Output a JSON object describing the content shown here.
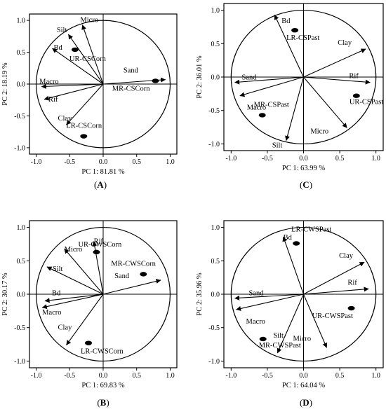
{
  "chart_data": [
    {
      "type": "scatter",
      "subtype": "pca-biplot",
      "caption": "A",
      "xlabel": "PC 1: 81.81 %",
      "ylabel": "PC 2: 18.19 %",
      "xlim": [
        -1.1,
        1.1
      ],
      "ylim": [
        -1.1,
        1.1
      ],
      "xticks": [
        "-1.0",
        "-0.5",
        "0.0",
        "0.5",
        "1.0"
      ],
      "yticks": [
        "1.0",
        "0.5",
        "0.0",
        "-0.5",
        "-1.0"
      ],
      "vectors": [
        {
          "label": "Micro",
          "x": -0.31,
          "y": 0.93
        },
        {
          "label": "Silt",
          "x": -0.52,
          "y": 0.78
        },
        {
          "label": "Bd",
          "x": -0.76,
          "y": 0.56
        },
        {
          "label": "Macro",
          "x": -0.92,
          "y": -0.04
        },
        {
          "label": "Rif",
          "x": -0.88,
          "y": -0.24
        },
        {
          "label": "Clay",
          "x": -0.55,
          "y": -0.64
        },
        {
          "label": "Sand",
          "x": 0.93,
          "y": 0.07
        }
      ],
      "points": [
        {
          "label": "UR-CSCorn",
          "x": -0.42,
          "y": 0.54
        },
        {
          "label": "MR-CSCorn",
          "x": 0.78,
          "y": 0.05
        },
        {
          "label": "LR-CSCorn",
          "x": -0.29,
          "y": -0.82
        }
      ]
    },
    {
      "type": "scatter",
      "subtype": "pca-biplot",
      "caption": "C",
      "xlabel": "PC 1: 63.99 %",
      "ylabel": "PC 2: 36.01 %",
      "xlim": [
        -1.1,
        1.1
      ],
      "ylim": [
        -1.1,
        1.1
      ],
      "xticks": [
        "-1.0",
        "-0.5",
        "0.0",
        "0.5",
        "1.0"
      ],
      "yticks": [
        "1.0",
        "0.5",
        "0.0",
        "-0.5",
        "-1.0"
      ],
      "vectors": [
        {
          "label": "Bd",
          "x": -0.4,
          "y": 0.93
        },
        {
          "label": "Clay",
          "x": 0.86,
          "y": 0.42
        },
        {
          "label": "Sand",
          "x": -0.95,
          "y": -0.08
        },
        {
          "label": "Macro",
          "x": -0.88,
          "y": -0.28
        },
        {
          "label": "Rif",
          "x": 0.92,
          "y": -0.08
        },
        {
          "label": "Silt",
          "x": -0.24,
          "y": -0.95
        },
        {
          "label": "Micro",
          "x": 0.6,
          "y": -0.76
        }
      ],
      "points": [
        {
          "label": "LR-CSPast",
          "x": -0.12,
          "y": 0.7
        },
        {
          "label": "MR-CSPast",
          "x": -0.57,
          "y": -0.57
        },
        {
          "label": "UR-CSPast",
          "x": 0.73,
          "y": -0.28
        }
      ]
    },
    {
      "type": "scatter",
      "subtype": "pca-biplot",
      "caption": "B",
      "xlabel": "PC 1: 69.83 %",
      "ylabel": "PC 2: 30.17 %",
      "xlim": [
        -1.1,
        1.1
      ],
      "ylim": [
        -1.1,
        1.1
      ],
      "xticks": [
        "-1.0",
        "-0.5",
        "0.0",
        "0.5",
        "1.0"
      ],
      "yticks": [
        "1.0",
        "0.5",
        "0.0",
        "-0.5",
        "-1.0"
      ],
      "vectors": [
        {
          "label": "Rif",
          "x": -0.14,
          "y": 0.79
        },
        {
          "label": "Micro",
          "x": -0.58,
          "y": 0.68
        },
        {
          "label": "Silt",
          "x": -0.84,
          "y": 0.41
        },
        {
          "label": "Bd",
          "x": -0.87,
          "y": -0.1
        },
        {
          "label": "Macro",
          "x": -0.91,
          "y": -0.2
        },
        {
          "label": "Clay",
          "x": -0.55,
          "y": -0.76
        },
        {
          "label": "Sand",
          "x": 0.86,
          "y": 0.21
        }
      ],
      "points": [
        {
          "label": "UR-CWSCorn",
          "x": -0.1,
          "y": 0.63
        },
        {
          "label": "MR-CWSCorn",
          "x": 0.6,
          "y": 0.3
        },
        {
          "label": "LR-CWSCorn",
          "x": -0.22,
          "y": -0.73
        }
      ]
    },
    {
      "type": "scatter",
      "subtype": "pca-biplot",
      "caption": "D",
      "xlabel": "PC 1: 64.04 %",
      "ylabel": "PC 2: 35.96 %",
      "xlim": [
        -1.1,
        1.1
      ],
      "ylim": [
        -1.1,
        1.1
      ],
      "xticks": [
        "-1.0",
        "-0.5",
        "0.0",
        "0.5",
        "1.0"
      ],
      "yticks": [
        "1.0",
        "0.5",
        "0.0",
        "-0.5",
        "-1.0"
      ],
      "vectors": [
        {
          "label": "Bd",
          "x": -0.28,
          "y": 0.86
        },
        {
          "label": "Clay",
          "x": 0.84,
          "y": 0.48
        },
        {
          "label": "Rif",
          "x": 0.9,
          "y": 0.08
        },
        {
          "label": "Sand",
          "x": -0.95,
          "y": -0.06
        },
        {
          "label": "Macro",
          "x": -0.93,
          "y": -0.23
        },
        {
          "label": "Silt",
          "x": -0.36,
          "y": -0.88
        },
        {
          "label": "Micro",
          "x": 0.32,
          "y": -0.8
        }
      ],
      "points": [
        {
          "label": "LR-CWSPast",
          "x": -0.1,
          "y": 0.76
        },
        {
          "label": "UR-CWSPast",
          "x": 0.66,
          "y": -0.21
        },
        {
          "label": "MR-CWSPast",
          "x": -0.56,
          "y": -0.67
        }
      ]
    }
  ]
}
